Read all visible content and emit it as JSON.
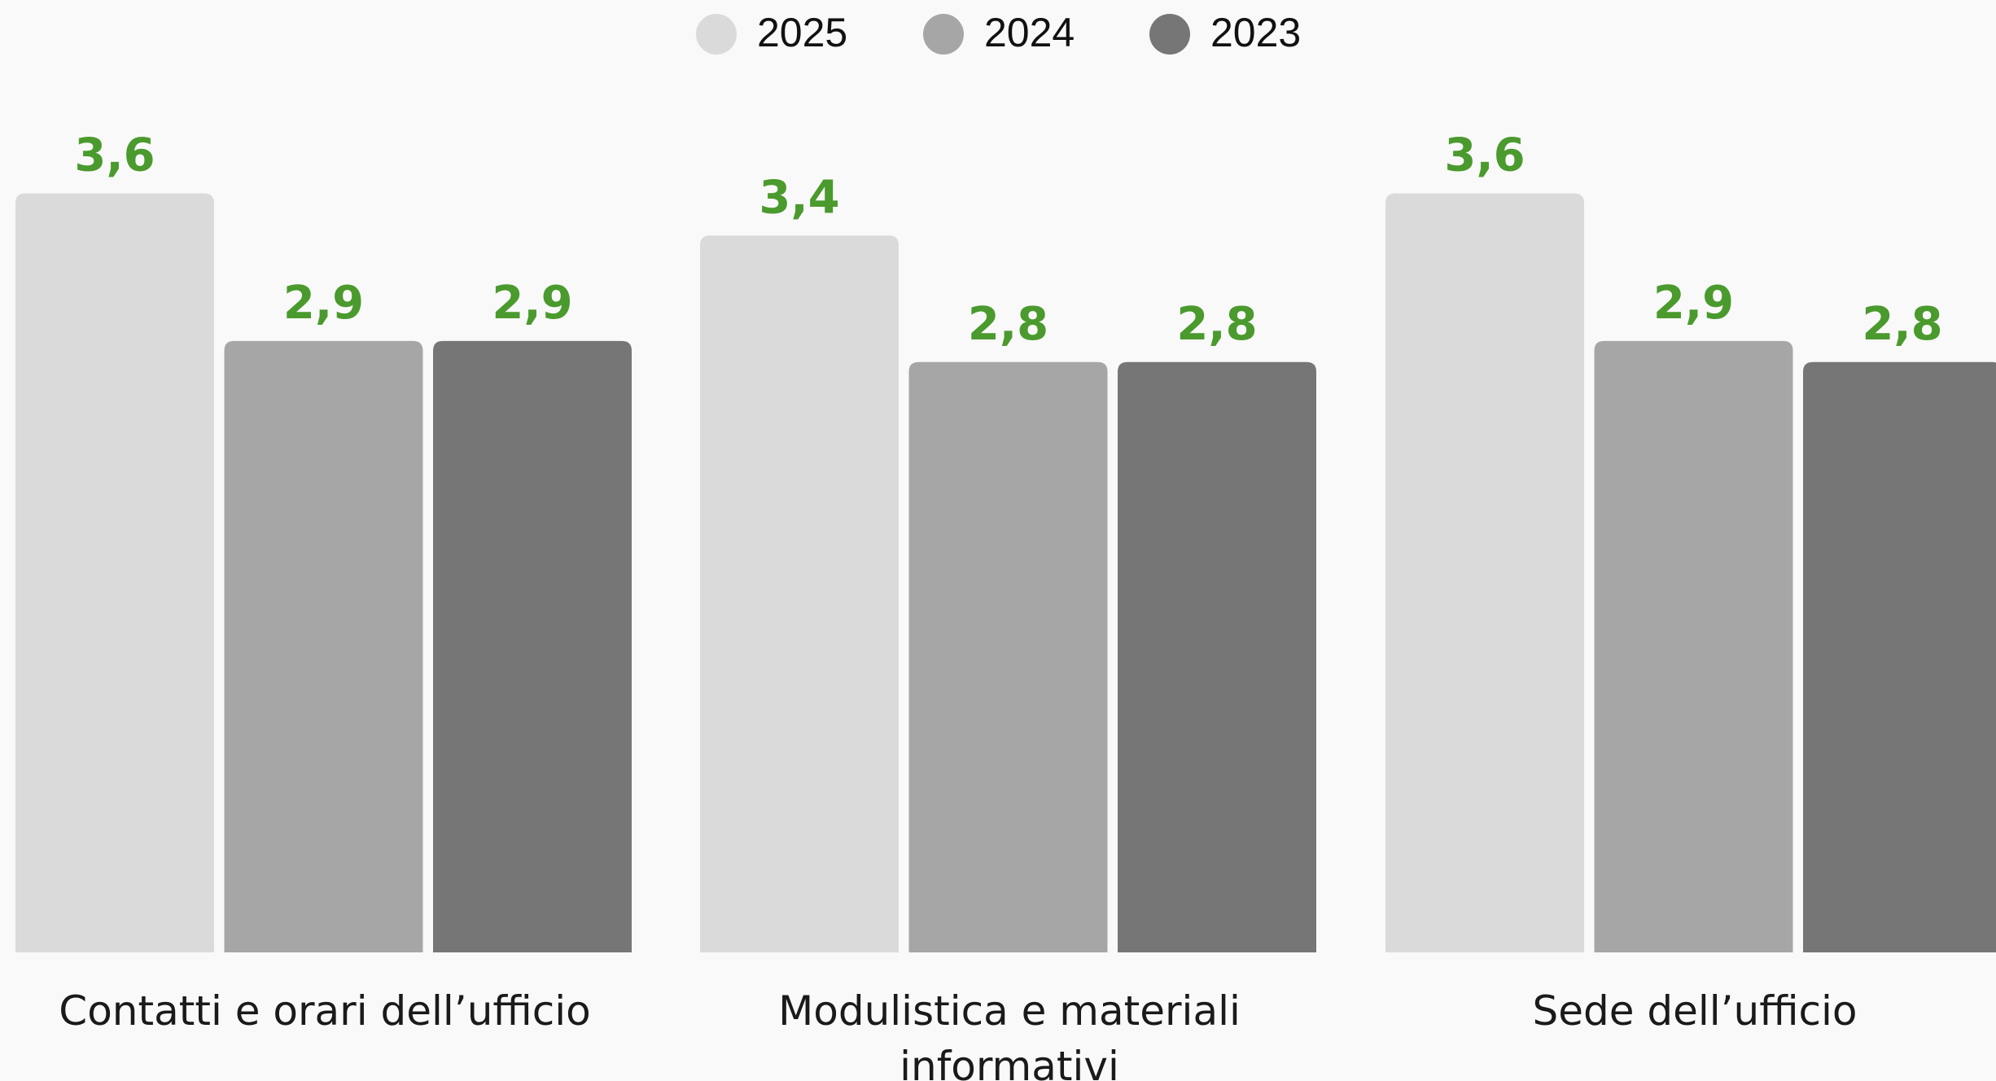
{
  "chart_data": {
    "type": "bar",
    "categories": [
      "Contatti e orari dell’ufficio",
      "Modulistica e materiali informativi",
      "Sede dell’ufficio"
    ],
    "series": [
      {
        "name": "2025",
        "color": "#dadada",
        "values": [
          3.6,
          3.4,
          3.6
        ],
        "value_labels": [
          "3,6",
          "3,4",
          "3,6"
        ]
      },
      {
        "name": "2024",
        "color": "#a6a6a6",
        "values": [
          2.9,
          2.8,
          2.9
        ],
        "value_labels": [
          "2,9",
          "2,8",
          "2,9"
        ]
      },
      {
        "name": "2023",
        "color": "#767676",
        "values": [
          2.9,
          2.8,
          2.8
        ],
        "value_labels": [
          "2,9",
          "2,8",
          "2,8"
        ]
      }
    ],
    "legend": "top"
  }
}
